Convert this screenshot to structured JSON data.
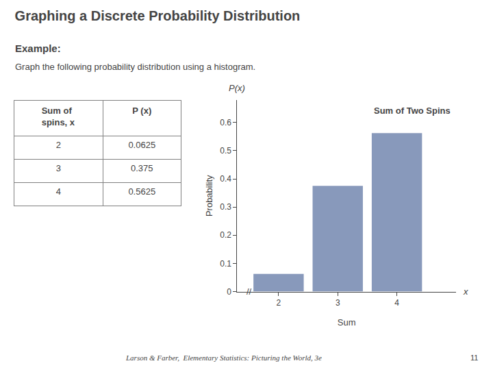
{
  "title": "Graphing a Discrete Probability Distribution",
  "annotations": [
    "Example:",
    "Graph the following probability distribution using a histogram.",
    "Larson & Farber,  Elementary Statistics: Picturing the World, 3e",
    "11"
  ],
  "chart_data": [
    {
      "type": "table",
      "header": [
        "Sum of\nspins, x",
        "P (x)"
      ],
      "rows": [
        [
          2,
          "0.0625"
        ],
        [
          3,
          "0.375"
        ],
        [
          4,
          "0.5625"
        ]
      ]
    },
    {
      "type": "bar",
      "title": "Sum of Two Spins",
      "x": [
        2,
        3,
        4
      ],
      "values": [
        0.0625,
        0.375,
        0.5625
      ],
      "color": "#8899bb",
      "xlabel": "Sum",
      "ylabel": "Probability",
      "xlim": [
        1.3,
        5.0
      ],
      "xticks": [
        2,
        3,
        4
      ],
      "ylim": [
        0,
        0.68
      ],
      "yticks": [
        0,
        0.1,
        0.2,
        0.3,
        0.4,
        0.5,
        0.6
      ],
      "grid": false,
      "annotations": [
        "P(x)",
        "x",
        "//"
      ]
    }
  ]
}
